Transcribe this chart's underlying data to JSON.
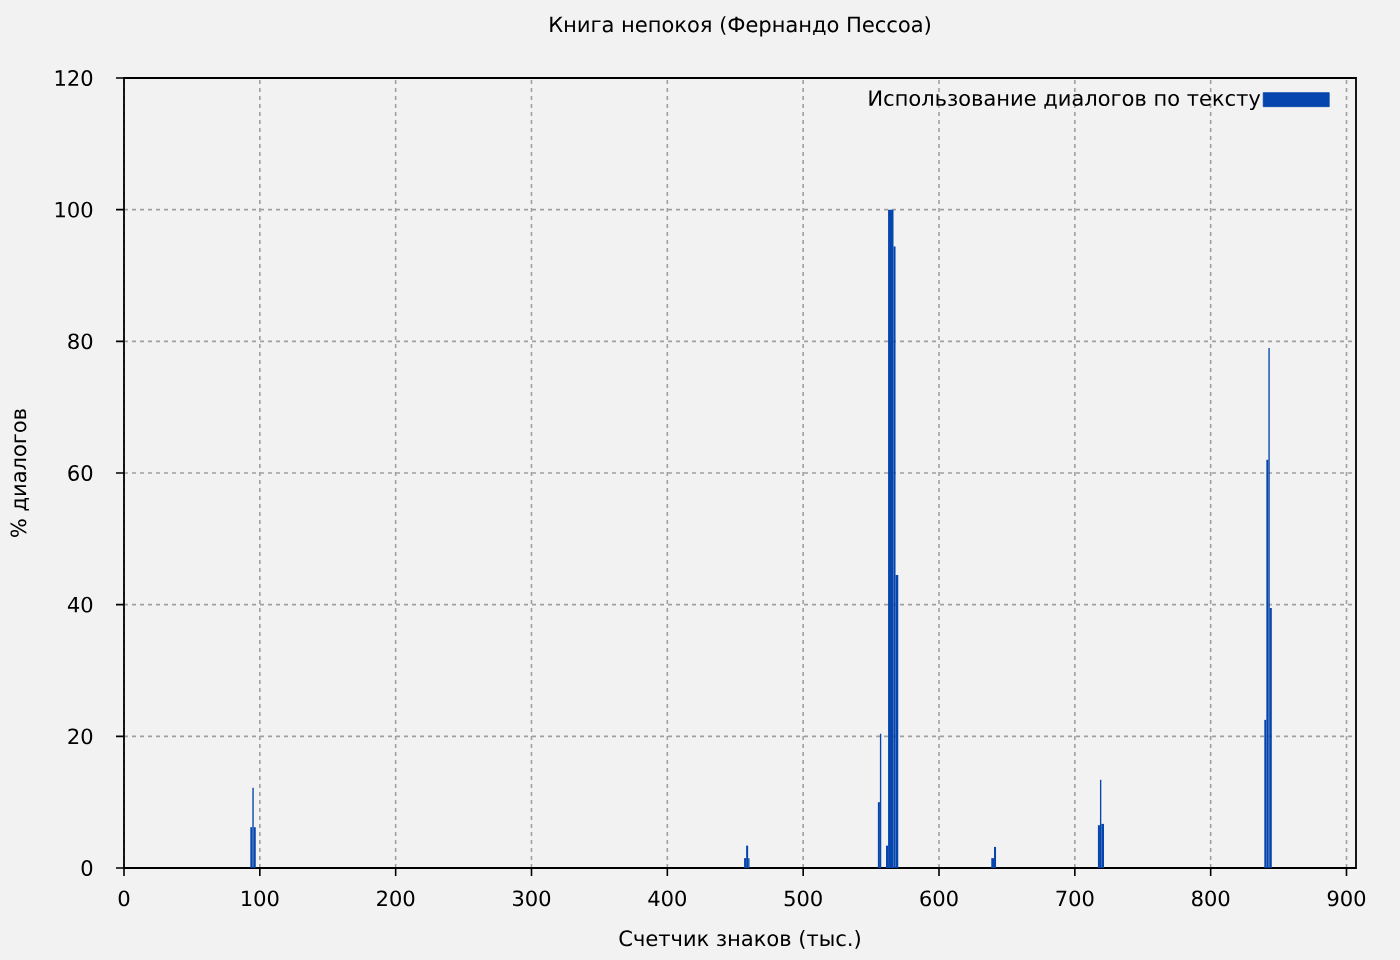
{
  "chart_data": {
    "type": "histogram",
    "title": "Книга непокоя (Фернандо Пессоа)",
    "xlabel": "Счетчик знаков (тыс.)",
    "ylabel": "% диалогов",
    "bins": [
      93,
      94.5,
      95.5,
      97,
      456.5,
      458,
      459.5,
      460.5,
      555,
      556.5,
      557.5,
      561,
      562.5,
      566.5,
      568,
      570,
      638.5,
      640.5,
      642,
      717,
      718.5,
      719.5,
      721.5,
      839.5,
      841,
      842.5,
      843.5,
      845
    ],
    "series": [
      {
        "name": "Использование диалогов по тексту",
        "color": "#0645ad",
        "values": [
          6.2,
          12.2,
          6.2,
          null,
          1.5,
          3.4,
          1.5,
          null,
          10,
          20.4,
          null,
          3.4,
          100,
          94.4,
          44.5,
          null,
          1.5,
          3.2,
          null,
          6.5,
          13.4,
          6.7,
          null,
          22.5,
          62,
          79,
          39.5
        ]
      }
    ],
    "xlim": [
      0,
      907
    ],
    "xticks": [
      0,
      100,
      200,
      300,
      400,
      500,
      600,
      700,
      800,
      900
    ],
    "ylim": [
      0,
      120
    ],
    "yticks": [
      0,
      20,
      40,
      60,
      80,
      100,
      120
    ],
    "grid": true,
    "legend": "top right"
  }
}
